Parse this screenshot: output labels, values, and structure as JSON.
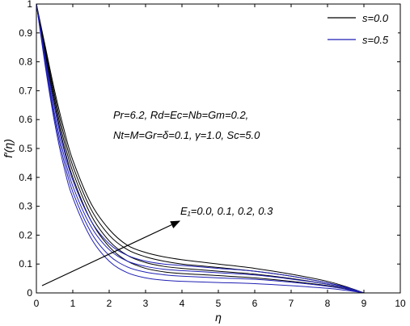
{
  "chart_data": {
    "type": "line",
    "xlabel": "η",
    "ylabel": "f′(η)",
    "xlim": [
      0,
      10
    ],
    "ylim": [
      0,
      1
    ],
    "xticks": [
      "0",
      "1",
      "2",
      "3",
      "4",
      "5",
      "6",
      "7",
      "8",
      "9",
      "10"
    ],
    "yticks": [
      "0",
      "0.1",
      "0.2",
      "0.3",
      "0.4",
      "0.5",
      "0.6",
      "0.7",
      "0.8",
      "0.9",
      "1"
    ],
    "grid": false,
    "legend_position": "top-right",
    "legend": [
      {
        "label": "s=0.0",
        "color": "#000000"
      },
      {
        "label": "s=0.5",
        "color": "#1f1fb4"
      }
    ],
    "annotations": [
      {
        "text": "Pr=6.2, Rd=Ec=Nb=Gm=0.2,"
      },
      {
        "text": "Nt=M=Gr=δ=0.1, γ=1.0, Sc=5.0"
      },
      {
        "text": "E₁=0.0, 0.1, 0.2, 0.3"
      }
    ],
    "series": [
      {
        "group": "s=0.0",
        "E1": 0.0,
        "color": "#000000",
        "x": [
          0,
          0.25,
          0.5,
          0.75,
          1,
          1.5,
          2,
          2.5,
          3,
          3.5,
          4,
          5,
          6,
          7,
          8,
          8.5,
          9
        ],
        "y": [
          1.0,
          0.85,
          0.7,
          0.57,
          0.46,
          0.31,
          0.22,
          0.165,
          0.14,
          0.125,
          0.115,
          0.1,
          0.085,
          0.065,
          0.04,
          0.022,
          0.0
        ]
      },
      {
        "group": "s=0.0",
        "E1": 0.1,
        "color": "#000000",
        "x": [
          0,
          0.25,
          0.5,
          0.75,
          1,
          1.5,
          2,
          2.5,
          3,
          3.5,
          4,
          5,
          6,
          7,
          8,
          8.5,
          9
        ],
        "y": [
          1.0,
          0.84,
          0.685,
          0.55,
          0.44,
          0.29,
          0.2,
          0.15,
          0.125,
          0.11,
          0.1,
          0.088,
          0.075,
          0.058,
          0.035,
          0.02,
          0.0
        ]
      },
      {
        "group": "s=0.0",
        "E1": 0.2,
        "color": "#000000",
        "x": [
          0,
          0.25,
          0.5,
          0.75,
          1,
          1.5,
          2,
          2.5,
          3,
          3.5,
          4,
          5,
          6,
          7,
          8,
          8.5,
          9
        ],
        "y": [
          1.0,
          0.83,
          0.67,
          0.53,
          0.42,
          0.27,
          0.18,
          0.13,
          0.105,
          0.092,
          0.085,
          0.075,
          0.065,
          0.05,
          0.03,
          0.017,
          0.0
        ]
      },
      {
        "group": "s=0.0",
        "E1": 0.3,
        "color": "#000000",
        "x": [
          0,
          0.25,
          0.5,
          0.75,
          1,
          1.5,
          2,
          2.5,
          3,
          3.5,
          4,
          5,
          6,
          7,
          8,
          8.5,
          9
        ],
        "y": [
          1.0,
          0.82,
          0.655,
          0.51,
          0.4,
          0.25,
          0.16,
          0.11,
          0.085,
          0.073,
          0.067,
          0.06,
          0.052,
          0.04,
          0.025,
          0.014,
          0.0
        ]
      },
      {
        "group": "s=0.5",
        "E1": 0.0,
        "color": "#1f1fb4",
        "x": [
          0,
          0.25,
          0.5,
          0.75,
          1,
          1.5,
          2,
          2.5,
          3,
          3.5,
          4,
          5,
          6,
          7,
          8,
          8.5,
          9
        ],
        "y": [
          1.0,
          0.81,
          0.64,
          0.5,
          0.39,
          0.25,
          0.17,
          0.13,
          0.11,
          0.1,
          0.095,
          0.085,
          0.075,
          0.058,
          0.035,
          0.02,
          0.0
        ]
      },
      {
        "group": "s=0.5",
        "E1": 0.1,
        "color": "#1f1fb4",
        "x": [
          0,
          0.25,
          0.5,
          0.75,
          1,
          1.5,
          2,
          2.5,
          3,
          3.5,
          4,
          5,
          6,
          7,
          8,
          8.5,
          9
        ],
        "y": [
          1.0,
          0.8,
          0.62,
          0.48,
          0.37,
          0.23,
          0.15,
          0.11,
          0.092,
          0.082,
          0.077,
          0.07,
          0.062,
          0.048,
          0.03,
          0.017,
          0.0
        ]
      },
      {
        "group": "s=0.5",
        "E1": 0.2,
        "color": "#1f1fb4",
        "x": [
          0,
          0.25,
          0.5,
          0.75,
          1,
          1.5,
          2,
          2.5,
          3,
          3.5,
          4,
          5,
          6,
          7,
          8,
          8.5,
          9
        ],
        "y": [
          1.0,
          0.79,
          0.605,
          0.46,
          0.35,
          0.21,
          0.13,
          0.09,
          0.072,
          0.063,
          0.058,
          0.052,
          0.047,
          0.037,
          0.023,
          0.013,
          0.0
        ]
      },
      {
        "group": "s=0.5",
        "E1": 0.3,
        "color": "#1f1fb4",
        "x": [
          0,
          0.25,
          0.5,
          0.75,
          1,
          1.5,
          2,
          2.5,
          3,
          3.5,
          4,
          5,
          6,
          7,
          8,
          8.5,
          9
        ],
        "y": [
          1.0,
          0.78,
          0.59,
          0.44,
          0.33,
          0.19,
          0.11,
          0.07,
          0.052,
          0.044,
          0.04,
          0.036,
          0.032,
          0.025,
          0.016,
          0.009,
          0.0
        ]
      }
    ]
  }
}
